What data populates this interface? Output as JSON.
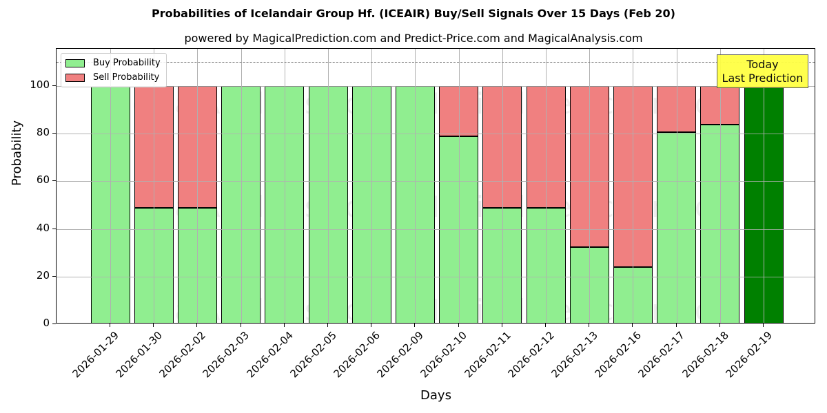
{
  "title": "Probabilities of Icelandair Group Hf. (ICEAIR) Buy/Sell Signals Over 15 Days (Feb 20)",
  "subtitle": "powered by MagicalPrediction.com and Predict-Price.com and MagicalAnalysis.com",
  "legend": {
    "buy": "Buy Probability",
    "sell": "Sell Probability"
  },
  "annotation": {
    "line1": "Today",
    "line2": "Last Prediction"
  },
  "watermarks": [
    "MagicalAnalysis.com",
    "MagicalPrediction.com"
  ],
  "colors": {
    "buy": "#90ee90",
    "sell": "#f08080",
    "today": "#008000",
    "annotation_bg": "#ffff44"
  },
  "chart_data": {
    "type": "bar",
    "stacked": true,
    "title": "Probabilities of Icelandair Group Hf. (ICEAIR) Buy/Sell Signals Over 15 Days (Feb 20)",
    "subtitle": "powered by MagicalPrediction.com and Predict-Price.com and MagicalAnalysis.com",
    "xlabel": "Days",
    "ylabel": "Probability",
    "ylim": [
      0,
      115
    ],
    "yticks": [
      0,
      20,
      40,
      60,
      80,
      100
    ],
    "grid": true,
    "legend_position": "upper left",
    "reference_line": {
      "y": 110,
      "style": "dashed",
      "color": "#808080"
    },
    "categories": [
      "2026-01-29",
      "2026-01-30",
      "2026-02-02",
      "2026-02-03",
      "2026-02-04",
      "2026-02-05",
      "2026-02-06",
      "2026-02-09",
      "2026-02-10",
      "2026-02-11",
      "2026-02-12",
      "2026-02-13",
      "2026-02-16",
      "2026-02-17",
      "2026-02-18",
      "2026-02-19"
    ],
    "series": [
      {
        "name": "Buy Probability",
        "values": [
          100,
          48.8,
          48.8,
          100,
          100,
          100,
          100,
          100,
          78.9,
          48.8,
          48.8,
          32.4,
          24.0,
          80.6,
          83.8,
          100
        ]
      },
      {
        "name": "Sell Probability",
        "values": [
          0,
          51.2,
          51.2,
          0,
          0,
          0,
          0,
          0,
          21.1,
          51.2,
          51.2,
          67.6,
          76.0,
          19.4,
          16.2,
          0
        ]
      }
    ],
    "annotations": [
      {
        "text": "Today\nLast Prediction",
        "x": "2026-02-19",
        "y": 105
      }
    ],
    "highlight": {
      "category": "2026-02-19",
      "color": "#008000"
    }
  }
}
